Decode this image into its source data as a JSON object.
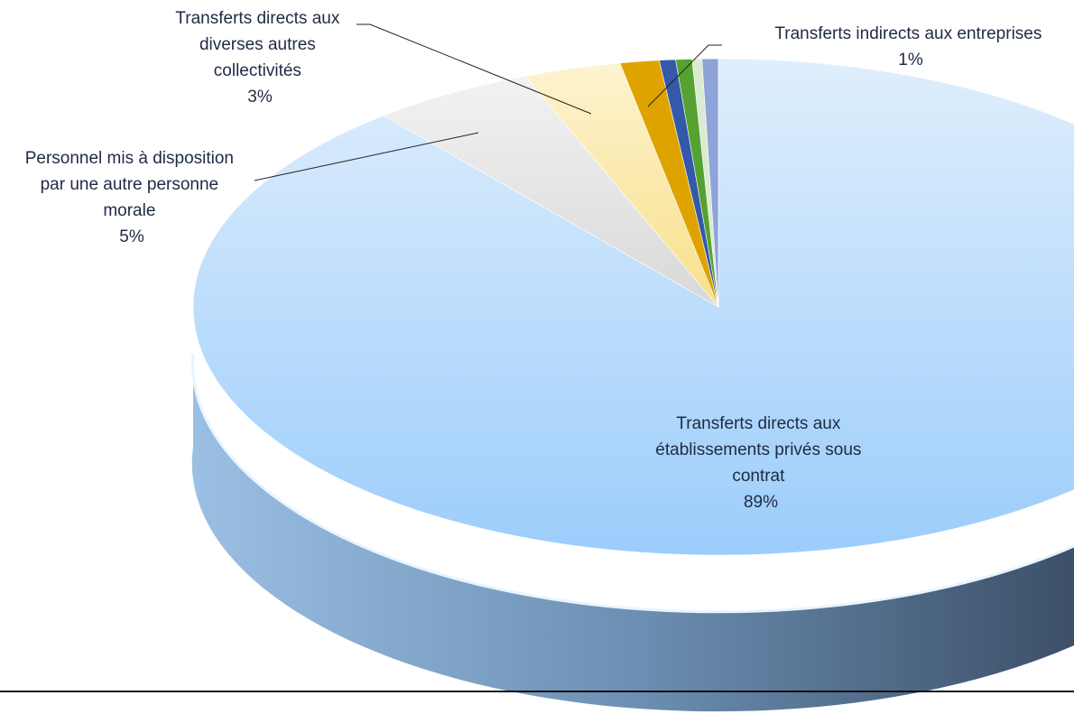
{
  "chart_data": {
    "type": "pie",
    "style": "3d",
    "title": "",
    "slices": [
      {
        "label": "Transferts directs aux établissements privés sous contrat",
        "value": 89,
        "value_label": "89%",
        "color": "#a9d3fb"
      },
      {
        "label": "Personnel mis à disposition par une autre personne morale",
        "value": 5,
        "value_label": "5%",
        "color": "#dcdcdc"
      },
      {
        "label": "Transferts directs aux diverses autres collectivités",
        "value": 3,
        "value_label": "3%",
        "color": "#fbe59a"
      },
      {
        "label": "",
        "value": 1.2,
        "value_label": "",
        "color": "#dfa300"
      },
      {
        "label": "",
        "value": 0.5,
        "value_label": "",
        "color": "#3359a8"
      },
      {
        "label": "",
        "value": 0.5,
        "value_label": "",
        "color": "#55a233"
      },
      {
        "label": "",
        "value": 0.3,
        "value_label": "",
        "color": "#dbead0"
      },
      {
        "label": "Transferts indirects aux entreprises",
        "value": 0.5,
        "value_label": "1%",
        "color": "#8ea4d8"
      }
    ],
    "labels": {
      "main": [
        "Transferts directs aux",
        "établissements privés sous",
        "contrat",
        "89%"
      ],
      "personnel": [
        "Personnel mis à disposition",
        "par une autre personne",
        "morale",
        "5%"
      ],
      "collectivites": [
        "Transferts directs aux",
        "diverses autres",
        "collectivités",
        "3%"
      ],
      "entreprises": [
        "Transferts indirects aux entreprises",
        "1%"
      ]
    }
  }
}
